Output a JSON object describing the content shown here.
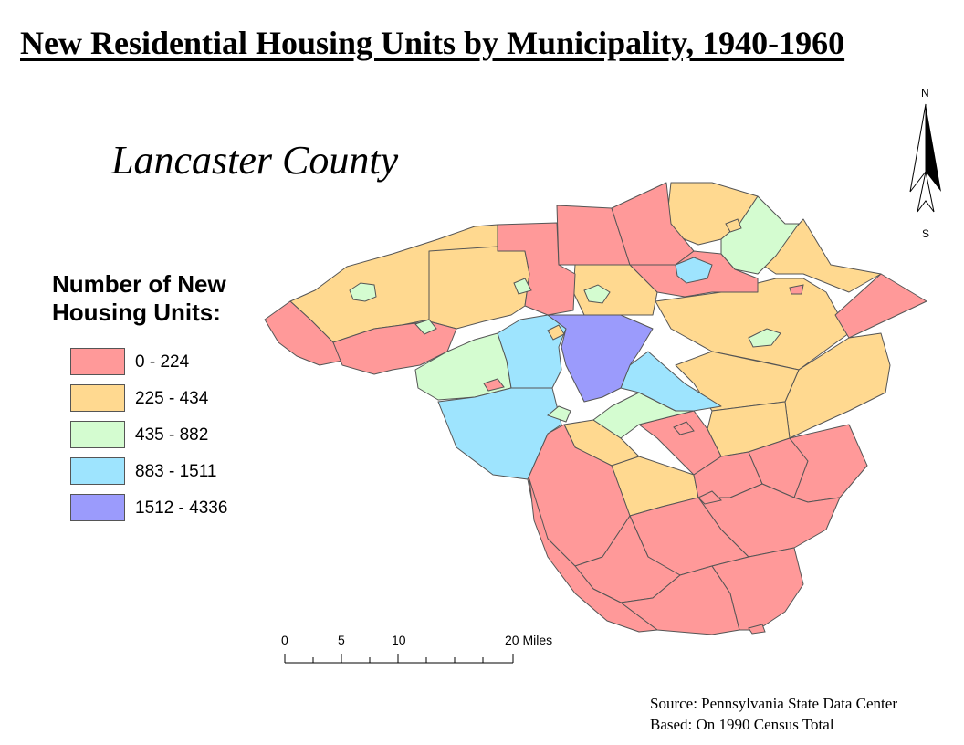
{
  "title": "New Residential Housing Units by Municipality, 1940-1960",
  "subtitle": "Lancaster County",
  "legend": {
    "title": "Number of New Housing Units:",
    "classes": [
      {
        "label": "0 - 224",
        "color": "#ff9999"
      },
      {
        "label": "225 - 434",
        "color": "#ffd990"
      },
      {
        "label": "435 - 882",
        "color": "#d4fcd0"
      },
      {
        "label": "883 - 1511",
        "color": "#9ee4fe"
      },
      {
        "label": "1512 - 4336",
        "color": "#9b9bfc"
      }
    ]
  },
  "north_arrow": {
    "north": "N",
    "south": "S"
  },
  "scale_bar": {
    "labels": [
      "0",
      "5",
      "10",
      "20 Miles"
    ]
  },
  "source": {
    "line1": "Source: Pennsylvania State Data Center",
    "line2": "Based: On 1990 Census Total"
  }
}
